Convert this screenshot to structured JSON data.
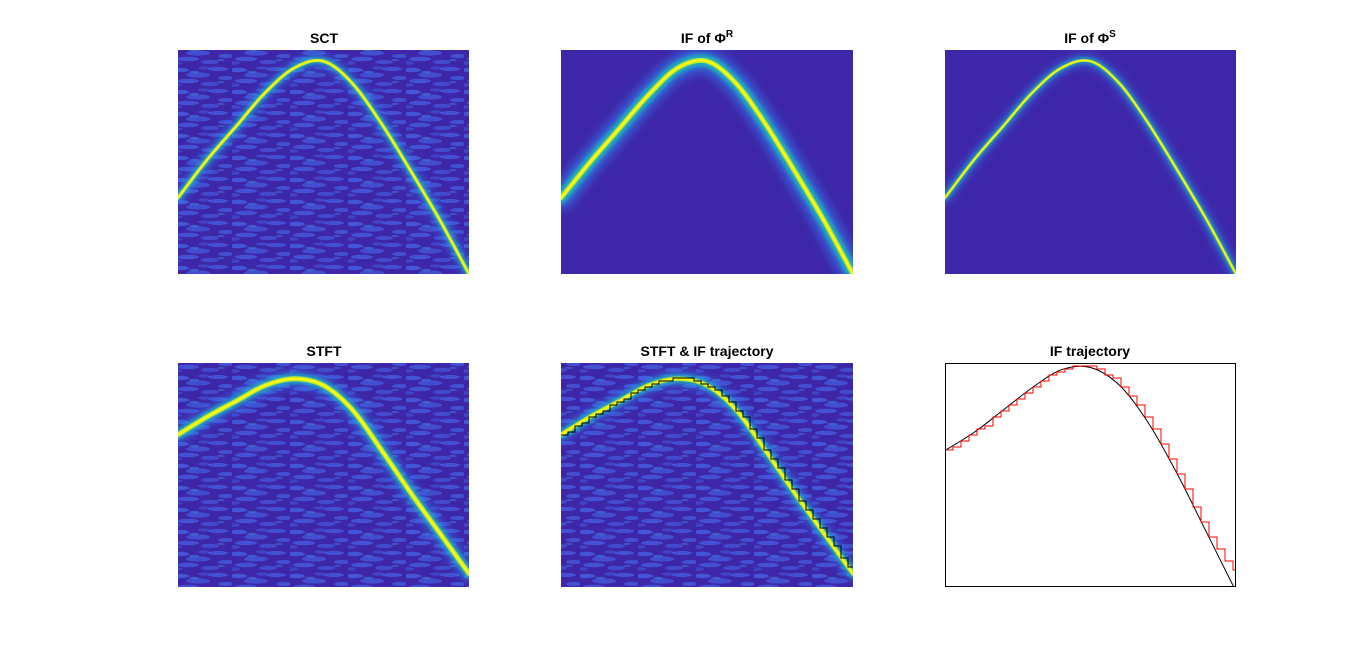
{
  "colors": {
    "figure_background": "#ffffff",
    "axes_background": "#ffffff",
    "frame": "#000000",
    "colormap": "parula",
    "low_level": "#3e26a8",
    "high_level": "#f9fb0e",
    "trajectory_line": "#000000",
    "estimated_trajectory_line": "#ff0000"
  },
  "chart_data": [
    {
      "type": "heatmap",
      "title": "SCT",
      "colormap": "parula",
      "ridge": {
        "x": [
          0,
          0.1,
          0.2,
          0.3,
          0.4,
          0.5,
          0.6,
          0.7,
          0.8,
          0.9,
          1
        ],
        "y": [
          0.34,
          0.51,
          0.66,
          0.81,
          0.92,
          0.95,
          0.85,
          0.67,
          0.46,
          0.24,
          0
        ]
      },
      "background": "noise"
    },
    {
      "type": "heatmap",
      "title": "IF of Φ",
      "title_superscript": "R",
      "colormap": "parula",
      "ridge": {
        "x": [
          0,
          0.1,
          0.2,
          0.3,
          0.4,
          0.5,
          0.6,
          0.7,
          0.8,
          0.9,
          1
        ],
        "y": [
          0.34,
          0.5,
          0.65,
          0.8,
          0.92,
          0.95,
          0.85,
          0.67,
          0.46,
          0.24,
          0
        ]
      },
      "background": "flat"
    },
    {
      "type": "heatmap",
      "title": "IF of Φ",
      "title_superscript": "S",
      "colormap": "parula",
      "ridge": {
        "x": [
          0,
          0.1,
          0.2,
          0.3,
          0.4,
          0.5,
          0.6,
          0.7,
          0.8,
          0.9,
          1
        ],
        "y": [
          0.34,
          0.51,
          0.66,
          0.81,
          0.92,
          0.95,
          0.85,
          0.67,
          0.46,
          0.24,
          0
        ]
      },
      "background": "flat"
    },
    {
      "type": "heatmap",
      "title": "STFT",
      "colormap": "parula",
      "ridge": {
        "x": [
          0,
          0.1,
          0.2,
          0.3,
          0.4,
          0.5,
          0.6,
          0.7,
          0.8,
          0.9,
          1
        ],
        "y": [
          0.68,
          0.76,
          0.83,
          0.9,
          0.93,
          0.9,
          0.79,
          0.61,
          0.42,
          0.24,
          0.06
        ]
      },
      "background": "noise"
    },
    {
      "type": "heatmap",
      "title": "STFT & IF trajectory",
      "colormap": "parula",
      "ridge": {
        "x": [
          0,
          0.1,
          0.2,
          0.3,
          0.4,
          0.5,
          0.6,
          0.7,
          0.8,
          0.9,
          1
        ],
        "y": [
          0.68,
          0.76,
          0.83,
          0.9,
          0.93,
          0.9,
          0.79,
          0.61,
          0.42,
          0.24,
          0.06
        ]
      },
      "overlay_trajectory": "step",
      "background": "noise"
    },
    {
      "type": "line",
      "title": "IF trajectory",
      "series": [
        {
          "x": [
            0,
            0.1,
            0.2,
            0.3,
            0.4,
            0.5,
            0.6,
            0.7,
            0.8,
            0.9,
            1
          ],
          "y": [
            0.61,
            0.69,
            0.79,
            0.89,
            0.97,
            0.98,
            0.9,
            0.73,
            0.5,
            0.24,
            -0.02
          ],
          "color": "#000000",
          "style": "smooth"
        },
        {
          "x": [
            0,
            0.1,
            0.2,
            0.3,
            0.4,
            0.5,
            0.6,
            0.7,
            0.8,
            0.9,
            1
          ],
          "y": [
            0.61,
            0.69,
            0.79,
            0.89,
            0.97,
            0.98,
            0.9,
            0.73,
            0.5,
            0.24,
            0.06
          ],
          "color": "#ff0000",
          "style": "step"
        }
      ],
      "xlim": [
        0,
        1
      ],
      "ylim": [
        0,
        1
      ],
      "grid": false,
      "ticks": false
    }
  ]
}
